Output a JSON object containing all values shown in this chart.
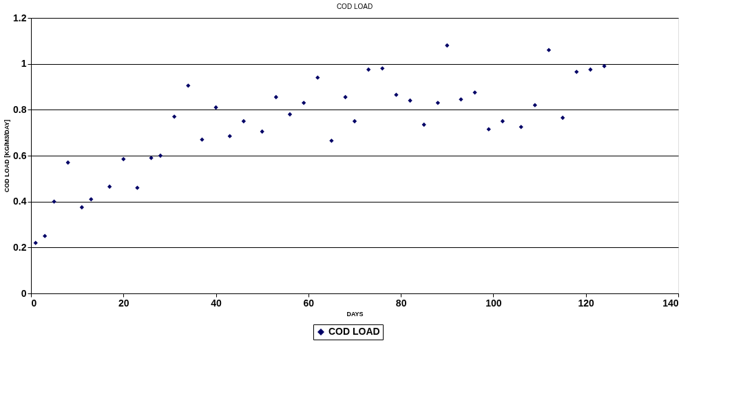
{
  "chart_data": {
    "type": "scatter",
    "title": "COD LOAD",
    "xlabel": "DAYS",
    "ylabel": "COD LOAD [KG/M3/DAY]",
    "x": [
      1,
      3,
      5,
      8,
      11,
      13,
      17,
      20,
      23,
      26,
      28,
      31,
      34,
      37,
      40,
      43,
      46,
      50,
      53,
      56,
      59,
      62,
      65,
      68,
      70,
      73,
      76,
      79,
      82,
      85,
      88,
      90,
      93,
      96,
      99,
      102,
      106,
      109,
      112,
      115,
      118,
      121,
      124
    ],
    "series": [
      {
        "name": "COD LOAD",
        "color": "#000066",
        "values": [
          0.22,
          0.25,
          0.4,
          0.57,
          0.375,
          0.41,
          0.465,
          0.585,
          0.46,
          0.59,
          0.6,
          0.77,
          0.905,
          0.67,
          0.81,
          0.685,
          0.75,
          0.705,
          0.855,
          0.78,
          0.83,
          0.94,
          0.665,
          0.855,
          0.75,
          0.975,
          0.98,
          0.865,
          0.84,
          0.735,
          0.83,
          1.08,
          0.845,
          0.875,
          0.715,
          0.75,
          0.725,
          0.82,
          1.06,
          0.765,
          0.965,
          0.975,
          0.99
        ]
      }
    ],
    "xlim": [
      0,
      140
    ],
    "xticks": [
      0,
      20,
      40,
      60,
      80,
      100,
      120,
      140
    ],
    "ylim": [
      0,
      1.2
    ],
    "yticks": [
      0,
      0.2,
      0.4,
      0.6,
      0.8,
      1,
      1.2
    ],
    "grid": "y",
    "legend": "bottom",
    "marker": "diamond"
  }
}
